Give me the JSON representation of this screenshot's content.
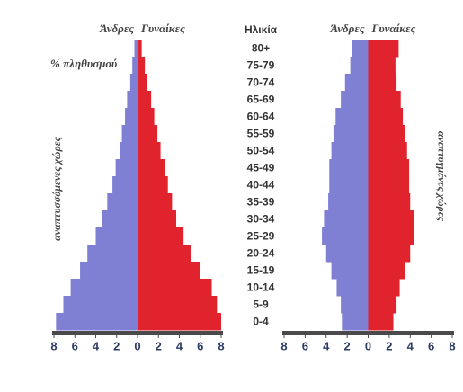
{
  "chart_data": [
    {
      "type": "pyramid",
      "title": "αναπτυσσόμενες χώρες",
      "xlabel": "% πληθυσμού",
      "ylabel": "Ηλικία",
      "categories": [
        "80+",
        "75-79",
        "70-74",
        "65-69",
        "60-64",
        "55-59",
        "50-54",
        "45-49",
        "40-44",
        "35-39",
        "30-34",
        "25-29",
        "20-24",
        "15-19",
        "10-14",
        "5-9",
        "0-4"
      ],
      "series": [
        {
          "name": "Άνδρες",
          "color": "#7f80d4",
          "side": "left",
          "values": [
            0.3,
            0.5,
            0.7,
            1.0,
            1.2,
            1.5,
            1.7,
            2.1,
            2.4,
            2.9,
            3.4,
            4.0,
            4.8,
            5.5,
            6.4,
            7.1,
            7.8
          ]
        },
        {
          "name": "Γυναίκες",
          "color": "#e0232c",
          "side": "right",
          "values": [
            0.4,
            0.7,
            0.9,
            1.3,
            1.6,
            1.9,
            2.2,
            2.6,
            2.9,
            3.3,
            3.7,
            4.4,
            5.1,
            6.0,
            7.1,
            7.6,
            8.0
          ]
        }
      ],
      "xlim": [
        -8,
        8
      ],
      "xticks": [
        {
          "value": -8,
          "label": "8"
        },
        {
          "value": -6,
          "label": "6"
        },
        {
          "value": -4,
          "label": "4"
        },
        {
          "value": -2,
          "label": "2"
        },
        0,
        2,
        4,
        6,
        8
      ]
    },
    {
      "type": "pyramid",
      "title": "ανεπτυγμένες χώρες",
      "series": [
        {
          "name": "Άνδρες",
          "color": "#7f80d4",
          "side": "left",
          "values": [
            1.5,
            1.7,
            2.2,
            2.6,
            3.1,
            3.3,
            3.5,
            3.7,
            3.7,
            3.8,
            4.2,
            4.4,
            4.0,
            3.5,
            3.0,
            2.6,
            2.5
          ]
        },
        {
          "name": "Γυναίκες",
          "color": "#e0232c",
          "side": "right",
          "values": [
            2.9,
            2.6,
            2.7,
            3.1,
            3.3,
            3.5,
            3.7,
            3.9,
            3.9,
            4.0,
            4.4,
            4.4,
            4.0,
            3.5,
            3.0,
            2.7,
            2.4
          ]
        }
      ],
      "xlim": [
        -8,
        8
      ],
      "xticks": [
        {
          "value": -8,
          "label": "8"
        },
        {
          "value": -6,
          "label": "6"
        },
        {
          "value": -4,
          "label": "4"
        },
        {
          "value": -2,
          "label": "2"
        },
        0,
        2,
        4,
        6,
        8
      ]
    }
  ]
}
